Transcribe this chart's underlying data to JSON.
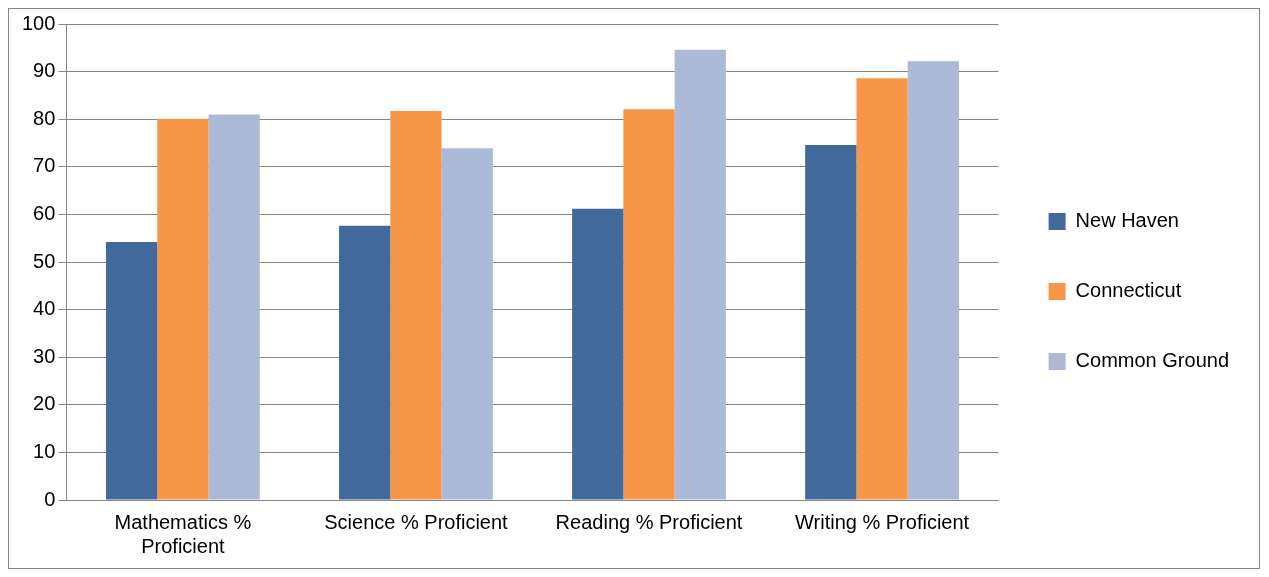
{
  "chart_data": {
    "type": "bar",
    "categories": [
      "Mathematics % Proficient",
      "Science % Proficient",
      "Reading % Proficient",
      "Writing % Proficient"
    ],
    "series": [
      {
        "name": "New Haven",
        "color": "#41699c",
        "values": [
          54.2,
          57.6,
          61.2,
          74.6
        ]
      },
      {
        "name": "Connecticut",
        "color": "#f79646",
        "values": [
          80.1,
          81.7,
          82.1,
          88.6
        ]
      },
      {
        "name": "Common Ground",
        "color": "#aabad7",
        "values": [
          81.0,
          73.9,
          94.6,
          92.2
        ]
      }
    ],
    "ylim": [
      0,
      100
    ],
    "yticks": [
      0,
      10,
      20,
      30,
      40,
      50,
      60,
      70,
      80,
      90,
      100
    ],
    "grid": "y",
    "legend": "right"
  }
}
